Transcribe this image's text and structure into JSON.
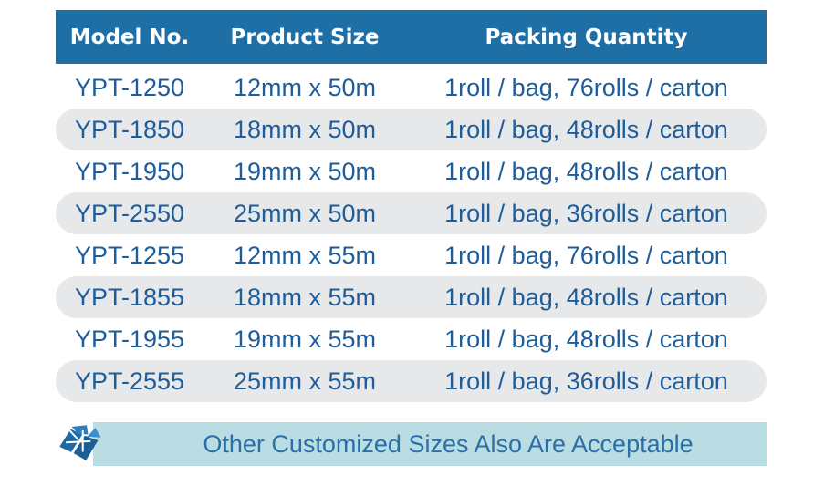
{
  "columns": {
    "model": "Model No.",
    "size": "Product Size",
    "packing": "Packing Quantity"
  },
  "rows": [
    {
      "model": "YPT-1250",
      "size": "12mm x 50m",
      "packing": "1roll / bag, 76rolls / carton"
    },
    {
      "model": "YPT-1850",
      "size": "18mm x 50m",
      "packing": "1roll / bag, 48rolls / carton"
    },
    {
      "model": "YPT-1950",
      "size": "19mm x 50m",
      "packing": "1roll / bag, 48rolls / carton"
    },
    {
      "model": "YPT-2550",
      "size": "25mm x 50m",
      "packing": "1roll / bag, 36rolls / carton"
    },
    {
      "model": "YPT-1255",
      "size": "12mm x 55m",
      "packing": "1roll / bag, 76rolls / carton"
    },
    {
      "model": "YPT-1855",
      "size": "18mm x 55m",
      "packing": "1roll / bag, 48rolls / carton"
    },
    {
      "model": "YPT-1955",
      "size": "19mm x 55m",
      "packing": "1roll / bag, 48rolls / carton"
    },
    {
      "model": "YPT-2555",
      "size": "25mm x 55m",
      "packing": "1roll / bag, 36rolls / carton"
    }
  ],
  "banner": {
    "text": "Other Customized Sizes Also Are Acceptable",
    "icon": "tape-roll-logo-icon"
  },
  "colors": {
    "header_bg": "#1e6fa6",
    "text": "#1f5d9a",
    "row_alt": "#e6e8ea",
    "banner_bg": "#b9dde3"
  }
}
